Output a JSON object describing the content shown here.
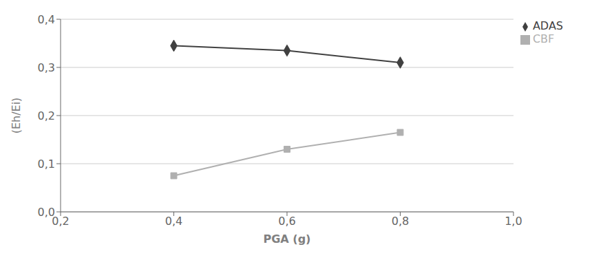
{
  "chart_data": {
    "type": "line",
    "x_label": "PGA (g)",
    "y_label": "(Eh/Ei)",
    "x": [
      0.4,
      0.6,
      0.8
    ],
    "series": [
      {
        "name": "ADAS",
        "color": "#404040",
        "marker": "diamond",
        "values": [
          0.345,
          0.335,
          0.31
        ]
      },
      {
        "name": "CBF",
        "color": "#b0b0b0",
        "marker": "square",
        "values": [
          0.075,
          0.13,
          0.165
        ]
      }
    ],
    "xlim": [
      0.2,
      1.0
    ],
    "ylim": [
      0.0,
      0.4
    ],
    "xticks": [
      {
        "value": 0.2,
        "label": "0,2"
      },
      {
        "value": 0.4,
        "label": "0,4"
      },
      {
        "value": 0.6,
        "label": "0,6"
      },
      {
        "value": 0.8,
        "label": "0,8"
      },
      {
        "value": 1.0,
        "label": "1,0"
      }
    ],
    "yticks": [
      {
        "value": 0.0,
        "label": "0,0"
      },
      {
        "value": 0.1,
        "label": "0,1"
      },
      {
        "value": 0.2,
        "label": "0,2"
      },
      {
        "value": 0.3,
        "label": "0,3"
      },
      {
        "value": 0.4,
        "label": "0,4"
      }
    ],
    "grid": "y",
    "legend": "upper right"
  }
}
